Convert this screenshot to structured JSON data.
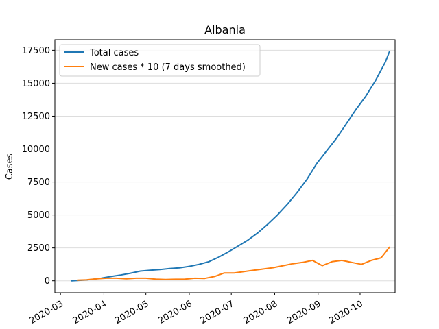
{
  "chart_data": {
    "type": "line",
    "title": "Albania",
    "xlabel": "",
    "ylabel": "Cases",
    "x_axis_type": "date",
    "xlim": [
      "2020-02-26",
      "2020-10-26"
    ],
    "ylim": [
      -900,
      18300
    ],
    "x_tick_labels": [
      "2020-03",
      "2020-04",
      "2020-05",
      "2020-06",
      "2020-07",
      "2020-08",
      "2020-09",
      "2020-10"
    ],
    "x_ticks": [
      "2020-03-01",
      "2020-04-01",
      "2020-05-01",
      "2020-06-01",
      "2020-07-01",
      "2020-08-01",
      "2020-09-01",
      "2020-10-01"
    ],
    "y_ticks": [
      0,
      2500,
      5000,
      7500,
      10000,
      12500,
      15000,
      17500
    ],
    "y_tick_labels": [
      "0",
      "2500",
      "5000",
      "7500",
      "10000",
      "12500",
      "15000",
      "17500"
    ],
    "grid": "horizontal",
    "legend_position": "top-left",
    "series": [
      {
        "name": "Total cases",
        "color": "#1f77b4",
        "points": [
          [
            "2020-03-09",
            0
          ],
          [
            "2020-03-16",
            40
          ],
          [
            "2020-03-23",
            100
          ],
          [
            "2020-03-30",
            200
          ],
          [
            "2020-04-06",
            330
          ],
          [
            "2020-04-13",
            440
          ],
          [
            "2020-04-20",
            580
          ],
          [
            "2020-04-27",
            740
          ],
          [
            "2020-05-04",
            800
          ],
          [
            "2020-05-11",
            860
          ],
          [
            "2020-05-18",
            930
          ],
          [
            "2020-05-25",
            990
          ],
          [
            "2020-06-01",
            1100
          ],
          [
            "2020-06-08",
            1250
          ],
          [
            "2020-06-15",
            1450
          ],
          [
            "2020-06-22",
            1800
          ],
          [
            "2020-06-29",
            2200
          ],
          [
            "2020-07-06",
            2650
          ],
          [
            "2020-07-13",
            3100
          ],
          [
            "2020-07-20",
            3650
          ],
          [
            "2020-07-27",
            4300
          ],
          [
            "2020-08-03",
            5000
          ],
          [
            "2020-08-10",
            5800
          ],
          [
            "2020-08-17",
            6700
          ],
          [
            "2020-08-24",
            7700
          ],
          [
            "2020-08-31",
            8900
          ],
          [
            "2020-09-07",
            9850
          ],
          [
            "2020-09-14",
            10800
          ],
          [
            "2020-09-21",
            11900
          ],
          [
            "2020-09-28",
            13000
          ],
          [
            "2020-10-05",
            14000
          ],
          [
            "2020-10-12",
            15200
          ],
          [
            "2020-10-19",
            16600
          ],
          [
            "2020-10-22",
            17400
          ]
        ]
      },
      {
        "name": "New cases * 10 (7 days smoothed)",
        "color": "#ff7f0e",
        "points": [
          [
            "2020-03-13",
            50
          ],
          [
            "2020-03-20",
            80
          ],
          [
            "2020-03-27",
            150
          ],
          [
            "2020-04-03",
            200
          ],
          [
            "2020-04-10",
            200
          ],
          [
            "2020-04-17",
            150
          ],
          [
            "2020-04-24",
            200
          ],
          [
            "2020-05-01",
            200
          ],
          [
            "2020-05-08",
            130
          ],
          [
            "2020-05-15",
            100
          ],
          [
            "2020-05-22",
            120
          ],
          [
            "2020-05-29",
            130
          ],
          [
            "2020-06-05",
            200
          ],
          [
            "2020-06-12",
            180
          ],
          [
            "2020-06-19",
            330
          ],
          [
            "2020-06-26",
            600
          ],
          [
            "2020-07-03",
            600
          ],
          [
            "2020-07-10",
            700
          ],
          [
            "2020-07-17",
            800
          ],
          [
            "2020-07-24",
            900
          ],
          [
            "2020-07-31",
            1000
          ],
          [
            "2020-08-07",
            1150
          ],
          [
            "2020-08-14",
            1300
          ],
          [
            "2020-08-21",
            1400
          ],
          [
            "2020-08-28",
            1550
          ],
          [
            "2020-09-04",
            1150
          ],
          [
            "2020-09-11",
            1450
          ],
          [
            "2020-09-18",
            1550
          ],
          [
            "2020-09-25",
            1400
          ],
          [
            "2020-10-02",
            1250
          ],
          [
            "2020-10-09",
            1550
          ],
          [
            "2020-10-16",
            1750
          ],
          [
            "2020-10-22",
            2550
          ]
        ]
      }
    ]
  }
}
